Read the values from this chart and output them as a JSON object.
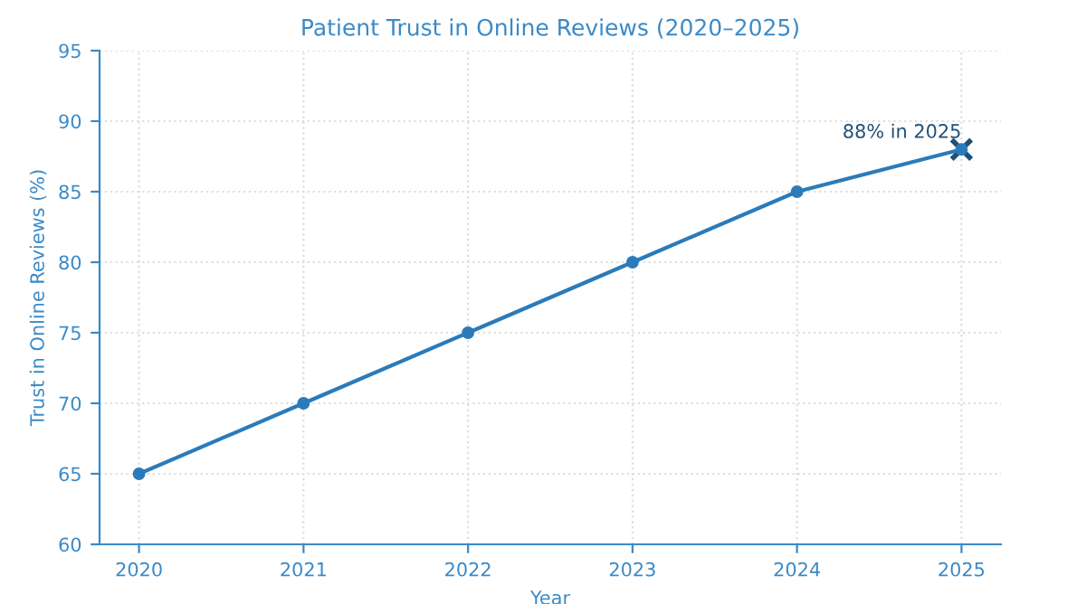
{
  "chart_data": {
    "type": "line",
    "title": "Patient Trust in Online Reviews (2020–2025)",
    "xlabel": "Year",
    "ylabel": "Trust in Online Reviews (%)",
    "x": [
      2020,
      2021,
      2022,
      2023,
      2024,
      2025
    ],
    "series": [
      {
        "color": "#2b7bba",
        "values": [
          65,
          70,
          75,
          80,
          85,
          88
        ],
        "marker": "circle"
      },
      {
        "type": "scatter",
        "x": [
          2025
        ],
        "color": "#1f5078",
        "values": [
          88
        ],
        "marker": "cross"
      }
    ],
    "annotations": [
      {
        "text": "88% in 2025",
        "x": 2025,
        "y": 88
      }
    ],
    "xlim": [
      2019.76,
      2025.24
    ],
    "xticks": [
      2020,
      2021,
      2022,
      2023,
      2024,
      2025
    ],
    "ylim": [
      60,
      95
    ],
    "yticks": [
      60,
      65,
      70,
      75,
      80,
      85,
      90,
      95
    ],
    "grid": true,
    "legend": false
  }
}
